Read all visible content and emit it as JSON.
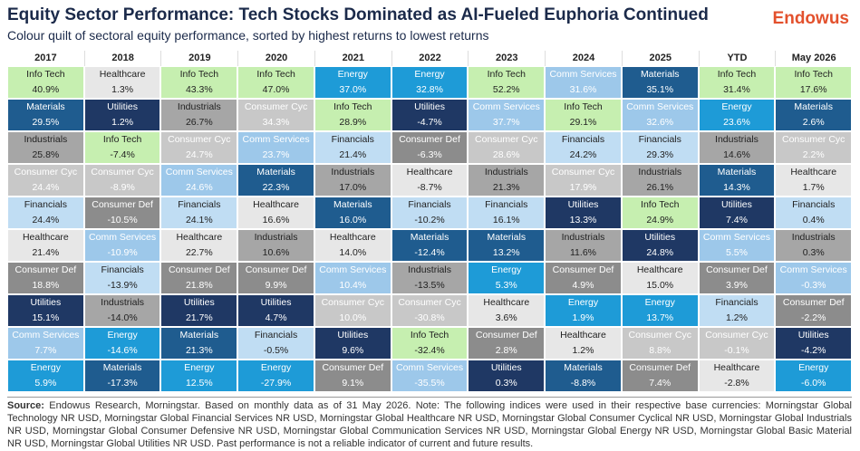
{
  "header": {
    "title": "Equity Sector Performance: Tech Stocks Dominated as AI-Fueled Euphoria Continued",
    "subtitle": "Colour quilt of sectoral equity performance, sorted by highest returns to lowest returns",
    "logo": "Endowus"
  },
  "sector_colors": {
    "Info Tech": {
      "bg": "#c6efb0",
      "fg": "#222222"
    },
    "Healthcare": {
      "bg": "#e7e7e7",
      "fg": "#222222"
    },
    "Materials": {
      "bg": "#1f5c8f",
      "fg": "#ffffff"
    },
    "Utilities": {
      "bg": "#1f3864",
      "fg": "#ffffff"
    },
    "Industrials": {
      "bg": "#a6a6a6",
      "fg": "#222222"
    },
    "Consumer Cyc": {
      "bg": "#c8c8c8",
      "fg": "#ffffff"
    },
    "Comm Services": {
      "bg": "#9dc8ea",
      "fg": "#ffffff"
    },
    "Consumer Def": {
      "bg": "#8c8c8c",
      "fg": "#ffffff"
    },
    "Financials": {
      "bg": "#c0ddf3",
      "fg": "#222222"
    },
    "Energy": {
      "bg": "#1e9bd7",
      "fg": "#ffffff"
    }
  },
  "table": {
    "columns": [
      {
        "header": "2017",
        "cells": [
          [
            "Info Tech",
            "40.9%"
          ],
          [
            "Materials",
            "29.5%"
          ],
          [
            "Industrials",
            "25.8%"
          ],
          [
            "Consumer Cyc",
            "24.4%"
          ],
          [
            "Financials",
            "24.4%"
          ],
          [
            "Healthcare",
            "21.4%"
          ],
          [
            "Consumer Def",
            "18.8%"
          ],
          [
            "Utilities",
            "15.1%"
          ],
          [
            "Comm Services",
            "7.7%"
          ],
          [
            "Energy",
            "5.9%"
          ]
        ]
      },
      {
        "header": "2018",
        "cells": [
          [
            "Healthcare",
            "1.3%"
          ],
          [
            "Utilities",
            "1.2%"
          ],
          [
            "Info Tech",
            "-7.4%"
          ],
          [
            "Consumer Cyc",
            "-8.9%"
          ],
          [
            "Consumer Def",
            "-10.5%"
          ],
          [
            "Comm Services",
            "-10.9%"
          ],
          [
            "Financials",
            "-13.9%"
          ],
          [
            "Industrials",
            "-14.0%"
          ],
          [
            "Energy",
            "-14.6%"
          ],
          [
            "Materials",
            "-17.3%"
          ]
        ]
      },
      {
        "header": "2019",
        "cells": [
          [
            "Info Tech",
            "43.3%"
          ],
          [
            "Industrials",
            "26.7%"
          ],
          [
            "Consumer Cyc",
            "24.7%"
          ],
          [
            "Comm Services",
            "24.6%"
          ],
          [
            "Financials",
            "24.1%"
          ],
          [
            "Healthcare",
            "22.7%"
          ],
          [
            "Consumer Def",
            "21.8%"
          ],
          [
            "Utilities",
            "21.7%"
          ],
          [
            "Materials",
            "21.3%"
          ],
          [
            "Energy",
            "12.5%"
          ]
        ]
      },
      {
        "header": "2020",
        "cells": [
          [
            "Info Tech",
            "47.0%"
          ],
          [
            "Consumer Cyc",
            "34.3%"
          ],
          [
            "Comm Services",
            "23.7%"
          ],
          [
            "Materials",
            "22.3%"
          ],
          [
            "Healthcare",
            "16.6%"
          ],
          [
            "Industrials",
            "10.6%"
          ],
          [
            "Consumer Def",
            "9.9%"
          ],
          [
            "Utilities",
            "4.7%"
          ],
          [
            "Financials",
            "-0.5%"
          ],
          [
            "Energy",
            "-27.9%"
          ]
        ]
      },
      {
        "header": "2021",
        "cells": [
          [
            "Energy",
            "37.0%"
          ],
          [
            "Info Tech",
            "28.9%"
          ],
          [
            "Financials",
            "21.4%"
          ],
          [
            "Industrials",
            "17.0%"
          ],
          [
            "Materials",
            "16.0%"
          ],
          [
            "Healthcare",
            "14.0%"
          ],
          [
            "Comm Services",
            "10.4%"
          ],
          [
            "Consumer Cyc",
            "10.0%"
          ],
          [
            "Utilities",
            "9.6%"
          ],
          [
            "Consumer Def",
            "9.1%"
          ]
        ]
      },
      {
        "header": "2022",
        "cells": [
          [
            "Energy",
            "32.8%"
          ],
          [
            "Utilities",
            "-4.7%"
          ],
          [
            "Consumer Def",
            "-6.3%"
          ],
          [
            "Healthcare",
            "-8.7%"
          ],
          [
            "Financials",
            "-10.2%"
          ],
          [
            "Materials",
            "-12.4%"
          ],
          [
            "Industrials",
            "-13.5%"
          ],
          [
            "Consumer Cyc",
            "-30.8%"
          ],
          [
            "Info Tech",
            "-32.4%"
          ],
          [
            "Comm Services",
            "-35.5%"
          ]
        ]
      },
      {
        "header": "2023",
        "cells": [
          [
            "Info Tech",
            "52.2%"
          ],
          [
            "Comm Services",
            "37.7%"
          ],
          [
            "Consumer Cyc",
            "28.6%"
          ],
          [
            "Industrials",
            "21.3%"
          ],
          [
            "Financials",
            "16.1%"
          ],
          [
            "Materials",
            "13.2%"
          ],
          [
            "Energy",
            "5.3%"
          ],
          [
            "Healthcare",
            "3.6%"
          ],
          [
            "Consumer Def",
            "2.8%"
          ],
          [
            "Utilities",
            "0.3%"
          ]
        ]
      },
      {
        "header": "2024",
        "cells": [
          [
            "Comm Services",
            "31.6%"
          ],
          [
            "Info Tech",
            "29.1%"
          ],
          [
            "Financials",
            "24.2%"
          ],
          [
            "Consumer Cyc",
            "17.9%"
          ],
          [
            "Utilities",
            "13.3%"
          ],
          [
            "Industrials",
            "11.6%"
          ],
          [
            "Consumer Def",
            "4.9%"
          ],
          [
            "Energy",
            "1.9%"
          ],
          [
            "Healthcare",
            "1.2%"
          ],
          [
            "Materials",
            "-8.8%"
          ]
        ]
      },
      {
        "header": "2025",
        "cells": [
          [
            "Materials",
            "35.1%"
          ],
          [
            "Comm Services",
            "32.6%"
          ],
          [
            "Financials",
            "29.3%"
          ],
          [
            "Industrials",
            "26.1%"
          ],
          [
            "Info Tech",
            "24.9%"
          ],
          [
            "Utilities",
            "24.8%"
          ],
          [
            "Healthcare",
            "15.0%"
          ],
          [
            "Energy",
            "13.7%"
          ],
          [
            "Consumer Cyc",
            "8.8%"
          ],
          [
            "Consumer Def",
            "7.4%"
          ]
        ]
      },
      {
        "header": "YTD",
        "cells": [
          [
            "Info Tech",
            "31.4%"
          ],
          [
            "Energy",
            "23.6%"
          ],
          [
            "Industrials",
            "14.6%"
          ],
          [
            "Materials",
            "14.3%"
          ],
          [
            "Utilities",
            "7.4%"
          ],
          [
            "Comm Services",
            "5.5%"
          ],
          [
            "Consumer Def",
            "3.9%"
          ],
          [
            "Financials",
            "1.2%"
          ],
          [
            "Consumer Cyc",
            "-0.1%"
          ],
          [
            "Healthcare",
            "-2.8%"
          ]
        ]
      },
      {
        "header": "May 2026",
        "cells": [
          [
            "Info Tech",
            "17.6%"
          ],
          [
            "Materials",
            "2.6%"
          ],
          [
            "Consumer Cyc",
            "2.2%"
          ],
          [
            "Healthcare",
            "1.7%"
          ],
          [
            "Financials",
            "0.4%"
          ],
          [
            "Industrials",
            "0.3%"
          ],
          [
            "Comm Services",
            "-0.3%"
          ],
          [
            "Consumer Def",
            "-2.2%"
          ],
          [
            "Utilities",
            "-4.2%"
          ],
          [
            "Energy",
            "-6.0%"
          ]
        ]
      }
    ]
  },
  "footer": {
    "source_label": "Source:",
    "text": "Endowus Research, Morningstar. Based on monthly data as of 31 May 2026. Note: The following indices were used in their respective base currencies: Morningstar Global Technology NR USD, Morningstar Global Financial Services NR USD, Morningstar Global Healthcare NR USD, Morningstar Global Consumer Cyclical NR USD, Morningstar Global Industrials NR USD, Morningstar Global Consumer Defensive NR USD, Morningstar Global Communication Services NR USD, Morningstar Global Energy NR USD, Morningstar Global Basic Material NR USD, Morningstar Global Utilities NR USD. Past performance is not a reliable indicator of current and future results."
  }
}
